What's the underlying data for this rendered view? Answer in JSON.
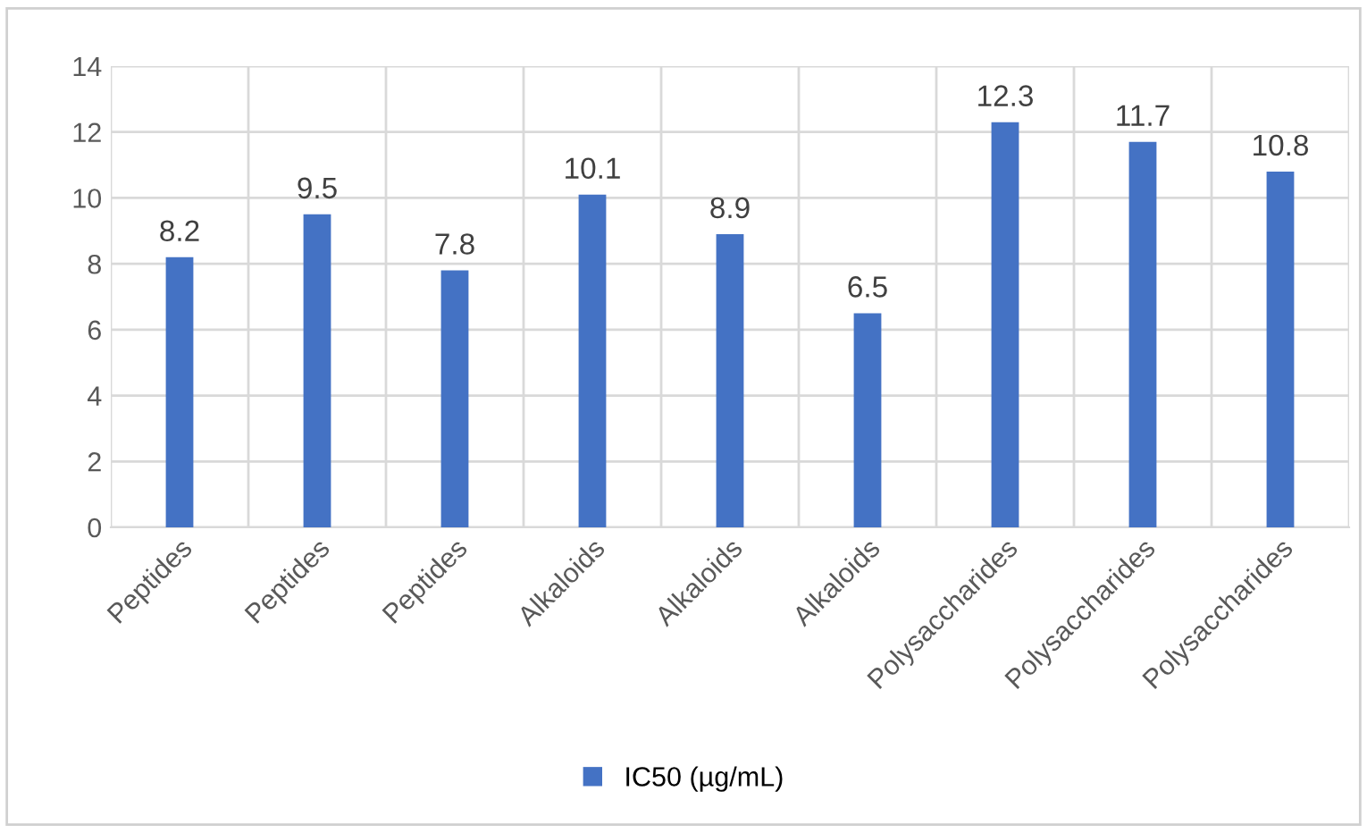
{
  "chart_data": {
    "type": "bar",
    "categories": [
      "Peptides",
      "Peptides",
      "Peptides",
      "Alkaloids",
      "Alkaloids",
      "Alkaloids",
      "Polysaccharides",
      "Polysaccharides",
      "Polysaccharides"
    ],
    "series": [
      {
        "name": "IC50 (µg/mL)",
        "color": "#4472c4",
        "values": [
          8.2,
          9.5,
          7.8,
          10.1,
          8.9,
          6.5,
          12.3,
          11.7,
          10.8
        ]
      }
    ],
    "ylim": [
      0,
      14
    ],
    "yticks": [
      0,
      2,
      4,
      6,
      8,
      10,
      12,
      14
    ],
    "grid": true,
    "legend": "bottom",
    "data_labels": true
  }
}
